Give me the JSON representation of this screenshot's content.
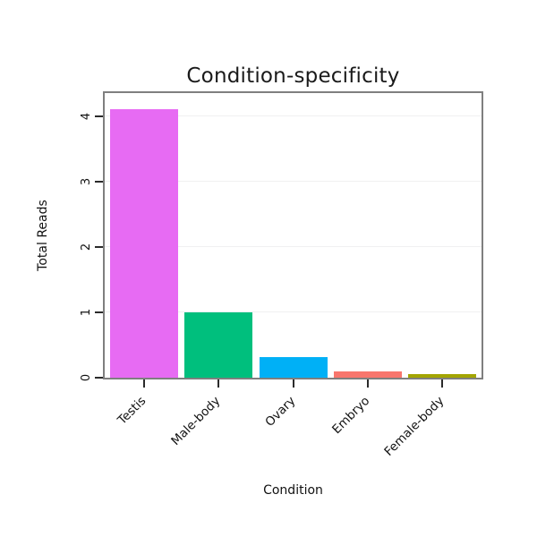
{
  "chart_data": {
    "type": "bar",
    "title": "Condition-specificity",
    "xlabel": "Condition",
    "ylabel": "Total Reads",
    "categories": [
      "Testis",
      "Male-body",
      "Ovary",
      "Embryo",
      "Female-body"
    ],
    "values": [
      4.1,
      1.0,
      0.32,
      0.1,
      0.06
    ],
    "colors": [
      "#E76BF3",
      "#00BF7D",
      "#00B0F6",
      "#F8766D",
      "#A3A500"
    ],
    "yticks": [
      0,
      1,
      2,
      3,
      4
    ],
    "ylim": [
      0,
      4.35
    ],
    "grid": "faint horizontal lines at integer ticks",
    "legend": "none",
    "panel_border_color": "#7f7f7f"
  }
}
